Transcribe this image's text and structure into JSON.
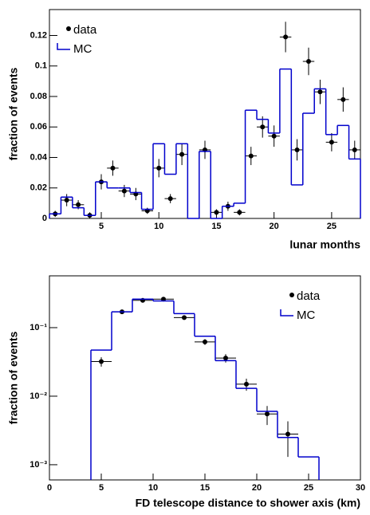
{
  "chart_data": [
    {
      "type": "step",
      "xlabel": "lunar months",
      "ylabel": "fraction of events",
      "xlim": [
        0.5,
        27.5
      ],
      "xticks": [
        5,
        10,
        15,
        20,
        25
      ],
      "ylim": [
        0,
        0.137
      ],
      "yticks": [
        0,
        0.02,
        0.04,
        0.06,
        0.08,
        0.1,
        0.12
      ],
      "log": false,
      "legend": "upper left",
      "series": [
        {
          "name": "data",
          "color": "#000000",
          "x": [
            1,
            2,
            3,
            4,
            5,
            6,
            7,
            8,
            9,
            10,
            11,
            12,
            13,
            14,
            15,
            16,
            17,
            18,
            19,
            20,
            21,
            22,
            23,
            24,
            25,
            26,
            27
          ],
          "values": [
            0.003,
            0.012,
            0.009,
            0.002,
            0.024,
            0.033,
            0.018,
            0.016,
            0.005,
            0.033,
            0.013,
            0.042,
            null,
            0.045,
            0.004,
            0.008,
            0.004,
            0.041,
            0.06,
            0.054,
            0.119,
            0.045,
            0.103,
            0.083,
            0.05,
            0.078,
            0.045
          ],
          "errors": [
            0.002,
            0.004,
            0.003,
            0.002,
            0.005,
            0.005,
            0.004,
            0.004,
            0.002,
            0.006,
            0.003,
            0.007,
            null,
            0.006,
            0.002,
            0.003,
            0.002,
            0.006,
            0.007,
            0.007,
            0.01,
            0.007,
            0.009,
            0.008,
            0.006,
            0.008,
            0.006
          ],
          "xerrors": [
            0.5,
            0.5,
            0.5,
            0.5,
            0.5,
            0.5,
            0.5,
            0.5,
            0.5,
            0.5,
            0.5,
            0.5,
            null,
            0.5,
            0.5,
            0.5,
            0.5,
            0.5,
            0.5,
            0.5,
            0.5,
            0.5,
            0.5,
            0.5,
            0.5,
            0.5,
            0.5
          ]
        },
        {
          "name": "MC",
          "color": "#0000cc",
          "bins": [
            0.5,
            1.5,
            2.5,
            3.5,
            4.5,
            5.5,
            6.5,
            7.5,
            8.5,
            9.5,
            10.5,
            11.5,
            12.5,
            13.5,
            14.5,
            15.5,
            16.5,
            17.5,
            18.5,
            19.5,
            20.5,
            21.5,
            22.5,
            23.5,
            24.5,
            25.5,
            26.5,
            27.5
          ],
          "values": [
            0.003,
            0.014,
            0.007,
            0.002,
            0.024,
            0.02,
            0.02,
            0.017,
            0.006,
            0.049,
            0.029,
            0.049,
            0,
            0.044,
            0,
            0.008,
            0.01,
            0.071,
            0.065,
            0.056,
            0.098,
            0.022,
            0.069,
            0.085,
            0.055,
            0.061,
            0.039
          ]
        }
      ]
    },
    {
      "type": "step",
      "xlabel": "FD telescope distance to shower axis (km)",
      "ylabel": "fraction of events",
      "xlim": [
        0,
        30
      ],
      "xticks": [
        0,
        5,
        10,
        15,
        20,
        25,
        30
      ],
      "ylim": [
        0.0006,
        0.57
      ],
      "log": true,
      "legend": "upper right",
      "yticks": [
        {
          "value": 0.001,
          "label": "10⁻³"
        },
        {
          "value": 0.01,
          "label": "10⁻²"
        },
        {
          "value": 0.1,
          "label": "10⁻¹"
        }
      ],
      "series": [
        {
          "name": "data",
          "color": "#000000",
          "x": [
            5,
            7,
            9,
            11,
            13,
            15,
            17,
            19,
            21,
            23
          ],
          "values": [
            0.032,
            0.17,
            0.25,
            0.26,
            0.14,
            0.062,
            0.036,
            0.015,
            0.0055,
            0.0028
          ],
          "errors": [
            0.005,
            0.01,
            0.012,
            0.012,
            0.009,
            0.006,
            0.005,
            0.003,
            0.0017,
            0.0015
          ],
          "xerrors": [
            1,
            1,
            1,
            1,
            1,
            1,
            1,
            1,
            1,
            1
          ]
        },
        {
          "name": "MC",
          "color": "#0000cc",
          "bins": [
            4,
            6,
            8,
            10,
            12,
            14,
            16,
            18,
            20,
            22,
            24,
            26
          ],
          "values": [
            0.047,
            0.17,
            0.26,
            0.245,
            0.16,
            0.075,
            0.033,
            0.013,
            0.006,
            0.0025,
            0.0013
          ]
        }
      ]
    }
  ]
}
